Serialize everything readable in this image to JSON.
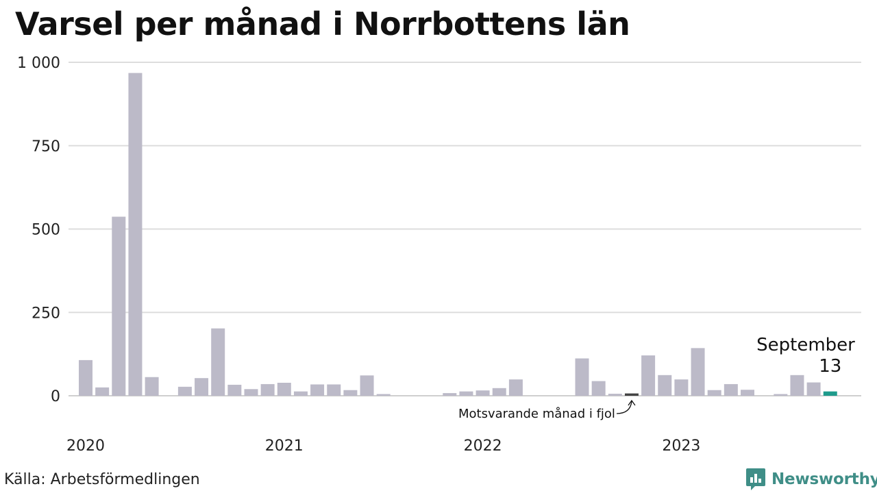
{
  "source": "Källa: Arbetsförmedlingen",
  "brand": {
    "name": "Newsworthy",
    "icon": "newsworthy-logo-icon"
  },
  "colors": {
    "default": "#bcbac8",
    "highlight_prev": "#444444",
    "current": "#1f9b8c",
    "grid": "#dddddd"
  },
  "chart_data": {
    "type": "bar",
    "title": "Varsel per månad i Norrbottens län",
    "xlabel": "",
    "ylabel": "",
    "ylim": [
      0,
      1000
    ],
    "yticks": [
      {
        "value": 0,
        "label": "0"
      },
      {
        "value": 250,
        "label": "250"
      },
      {
        "value": 500,
        "label": "500"
      },
      {
        "value": 750,
        "label": "750"
      },
      {
        "value": 1000,
        "label": "1 000"
      }
    ],
    "xticks": [
      {
        "index": 0,
        "label": "2020"
      },
      {
        "index": 12,
        "label": "2021"
      },
      {
        "index": 24,
        "label": "2022"
      },
      {
        "index": 36,
        "label": "2023"
      }
    ],
    "grid": true,
    "values": [
      107,
      25,
      537,
      968,
      56,
      0,
      27,
      53,
      202,
      33,
      20,
      35,
      39,
      13,
      34,
      34,
      17,
      61,
      5,
      0,
      0,
      0,
      8,
      13,
      16,
      23,
      49,
      0,
      0,
      0,
      112,
      44,
      6,
      7,
      121,
      62,
      49,
      143,
      17,
      35,
      18,
      0,
      5,
      62,
      40,
      13
    ],
    "highlight_prev_index": 33,
    "current_index": 45,
    "annotations": {
      "current_month": "September",
      "current_value": "13",
      "previous_year": "Motsvarande månad i fjol"
    }
  }
}
